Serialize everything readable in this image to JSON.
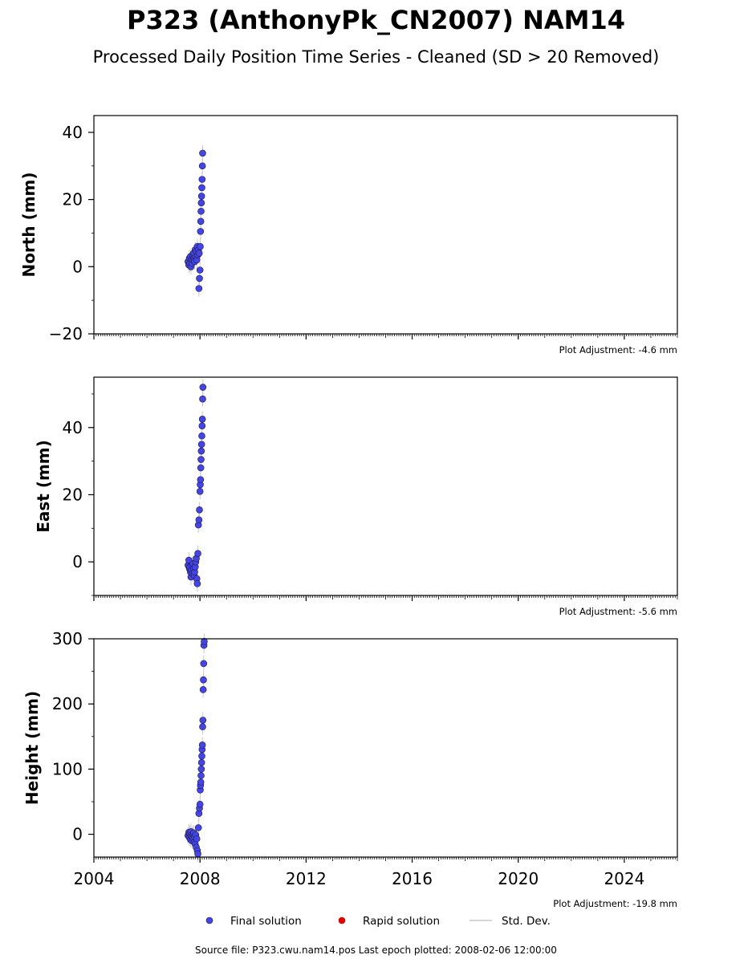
{
  "title": "P323 (AnthonyPk_CN2007) NAM14",
  "subtitle": "Processed Daily Position Time Series - Cleaned (SD > 20 Removed)",
  "footer": "Source file: P323.cwu.nam14.pos  Last epoch plotted: 2008-02-06 12:00:00",
  "colors": {
    "final": "#4545e6",
    "final_edge": "#1a1a4d",
    "rapid": "#e00000",
    "stddev": "#c8c8c8",
    "axes": "#000000"
  },
  "legend": [
    {
      "key": "final",
      "label": "Final solution",
      "icon": "blue-dot"
    },
    {
      "key": "rapid",
      "label": "Rapid solution",
      "icon": "red-dot"
    },
    {
      "key": "stddev",
      "label": "Std. Dev.",
      "icon": "gray-line"
    }
  ],
  "chart_data": [
    {
      "type": "scatter",
      "ylabel": "North (mm)",
      "xlim": [
        2004,
        2026
      ],
      "ylim": [
        -20,
        45
      ],
      "xticks": [
        2004,
        2008,
        2012,
        2016,
        2020,
        2024
      ],
      "yticks": [
        -20,
        0,
        20,
        40
      ],
      "show_xtick_labels": false,
      "adjustment": "Plot Adjustment: -4.6 mm",
      "series": [
        {
          "x": [
            2007.55,
            2007.58,
            2007.6,
            2007.62,
            2007.64,
            2007.66,
            2007.68,
            2007.7,
            2007.72,
            2007.74,
            2007.76,
            2007.78,
            2007.8,
            2007.82,
            2007.84,
            2007.86,
            2007.88,
            2007.9,
            2007.92,
            2007.94,
            2007.96,
            2007.97,
            2007.98,
            2008.0,
            2008.01,
            2008.02,
            2008.03,
            2008.04,
            2008.05,
            2008.06,
            2008.07,
            2008.08,
            2008.09,
            2008.1
          ],
          "y": [
            1.5,
            0.5,
            2.5,
            1.0,
            3.0,
            0.0,
            2.0,
            1.0,
            3.5,
            2.0,
            4.0,
            2.5,
            1.5,
            5.0,
            3.0,
            4.5,
            2.0,
            6.0,
            3.5,
            5.0,
            -6.5,
            4.0,
            -3.5,
            -1.0,
            6.0,
            10.5,
            13.5,
            16.5,
            19.0,
            21.0,
            23.5,
            26.0,
            30.0,
            33.8
          ]
        }
      ]
    },
    {
      "type": "scatter",
      "ylabel": "East (mm)",
      "xlim": [
        2004,
        2026
      ],
      "ylim": [
        -10,
        55
      ],
      "xticks": [
        2004,
        2008,
        2012,
        2016,
        2020,
        2024
      ],
      "yticks": [
        0,
        20,
        40
      ],
      "show_xtick_labels": false,
      "adjustment": "Plot Adjustment: -5.6 mm",
      "series": [
        {
          "x": [
            2007.55,
            2007.58,
            2007.6,
            2007.62,
            2007.64,
            2007.66,
            2007.68,
            2007.7,
            2007.72,
            2007.74,
            2007.76,
            2007.78,
            2007.8,
            2007.82,
            2007.84,
            2007.86,
            2007.88,
            2007.9,
            2007.92,
            2007.94,
            2007.96,
            2007.98,
            2008.0,
            2008.01,
            2008.02,
            2008.03,
            2008.04,
            2008.05,
            2008.06,
            2008.07,
            2008.08,
            2008.09,
            2008.1,
            2008.11
          ],
          "y": [
            -1.0,
            0.5,
            -2.0,
            -1.5,
            -3.0,
            -4.5,
            -2.5,
            -1.0,
            -3.5,
            -0.5,
            -2.0,
            -4.0,
            -3.0,
            -1.5,
            0.0,
            1.0,
            -5.0,
            -6.5,
            2.5,
            11.0,
            12.5,
            15.5,
            21.0,
            23.0,
            24.5,
            28.0,
            30.5,
            33.0,
            35.0,
            37.5,
            40.5,
            42.5,
            48.5,
            52.0
          ]
        }
      ]
    },
    {
      "type": "scatter",
      "ylabel": "Height (mm)",
      "xlim": [
        2004,
        2026
      ],
      "ylim": [
        -35,
        300
      ],
      "xticks": [
        2004,
        2008,
        2012,
        2016,
        2020,
        2024
      ],
      "yticks": [
        0,
        100,
        200,
        300
      ],
      "show_xtick_labels": true,
      "adjustment": "Plot Adjustment: -19.8 mm",
      "series": [
        {
          "x": [
            2007.55,
            2007.58,
            2007.6,
            2007.62,
            2007.64,
            2007.66,
            2007.68,
            2007.7,
            2007.72,
            2007.74,
            2007.76,
            2007.78,
            2007.8,
            2007.82,
            2007.84,
            2007.86,
            2007.88,
            2007.9,
            2007.92,
            2007.94,
            2007.96,
            2007.98,
            2008.0,
            2008.01,
            2008.02,
            2008.03,
            2008.04,
            2008.05,
            2008.06,
            2008.07,
            2008.08,
            2008.09,
            2008.1,
            2008.11,
            2008.12,
            2008.13,
            2008.14,
            2008.15,
            2008.16
          ],
          "y": [
            -2,
            3,
            -5,
            1,
            -8,
            4,
            -3,
            -10,
            0,
            -6,
            2,
            -12,
            -4,
            -15,
            -1,
            -20,
            -7,
            -25,
            -30,
            10,
            32,
            40,
            46,
            68,
            75,
            80,
            90,
            100,
            110,
            120,
            130,
            137,
            165,
            175,
            222,
            237,
            262,
            290,
            296
          ]
        }
      ]
    }
  ]
}
